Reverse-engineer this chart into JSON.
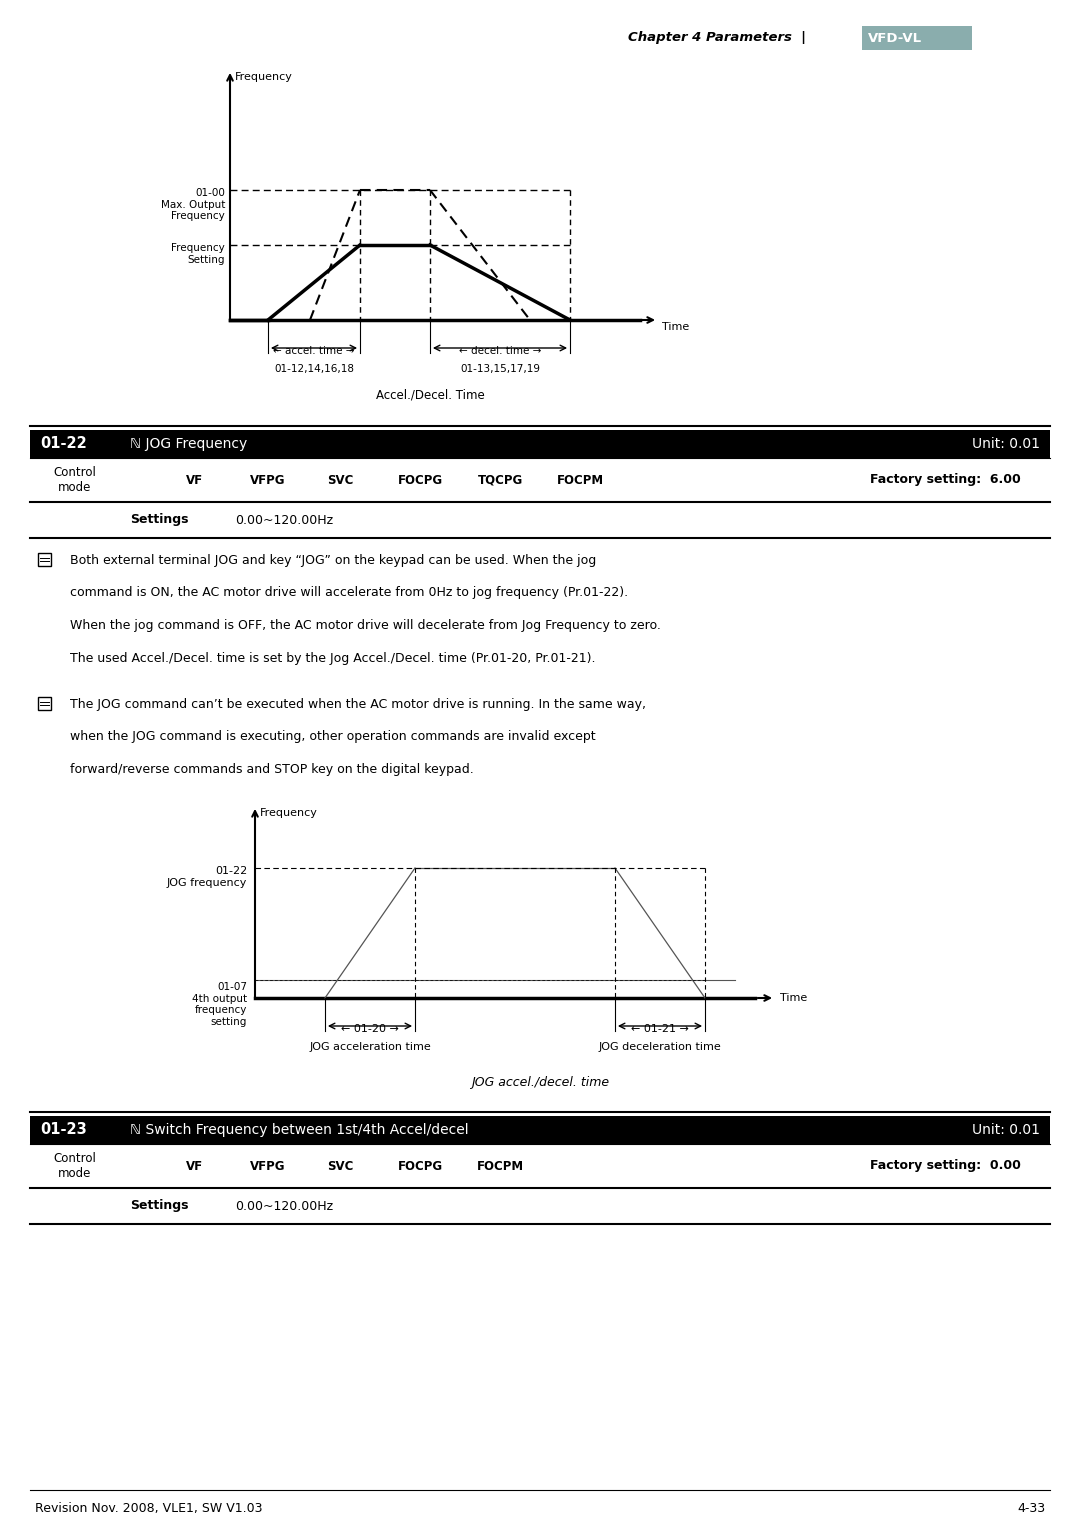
{
  "page_bg": "#ffffff",
  "header_italic": "Chapter 4 Parameters  |",
  "brand_text": "VFD-VL",
  "brand_bg": "#8aadad",
  "footer_left": "Revision Nov. 2008, VLE1, SW V1.03",
  "footer_right": "4-33",
  "param_0122": {
    "number": "01-22",
    "symbol": "ℕ JOG Frequency",
    "unit": "Unit: 0.01",
    "factory": "Factory setting:  6.00",
    "settings_value": "0.00~120.00Hz"
  },
  "notes_0122_line1": "Both external terminal JOG and key “JOG” on the keypad can be used. When the jog",
  "notes_0122_line2": "command is ON, the AC motor drive will accelerate from 0Hz to jog frequency (Pr.01-22).",
  "notes_0122_line3": "When the jog command is OFF, the AC motor drive will decelerate from Jog Frequency to zero.",
  "notes_0122_line4": "The used Accel./Decel. time is set by the Jog Accel./Decel. time (Pr.01-20, Pr.01-21).",
  "notes_0122_line5": "The JOG command can’t be executed when the AC motor drive is running. In the same way,",
  "notes_0122_line6": "when the JOG command is executing, other operation commands are invalid except",
  "notes_0122_line7": "forward/reverse commands and STOP key on the digital keypad.",
  "diagram2_caption": "JOG accel./decel. time",
  "param_0123": {
    "number": "01-23",
    "symbol": "ℕ Switch Frequency between 1st/4th Accel/decel",
    "unit": "Unit: 0.01",
    "factory": "Factory setting:  0.00",
    "settings_value": "0.00~120.00Hz"
  }
}
